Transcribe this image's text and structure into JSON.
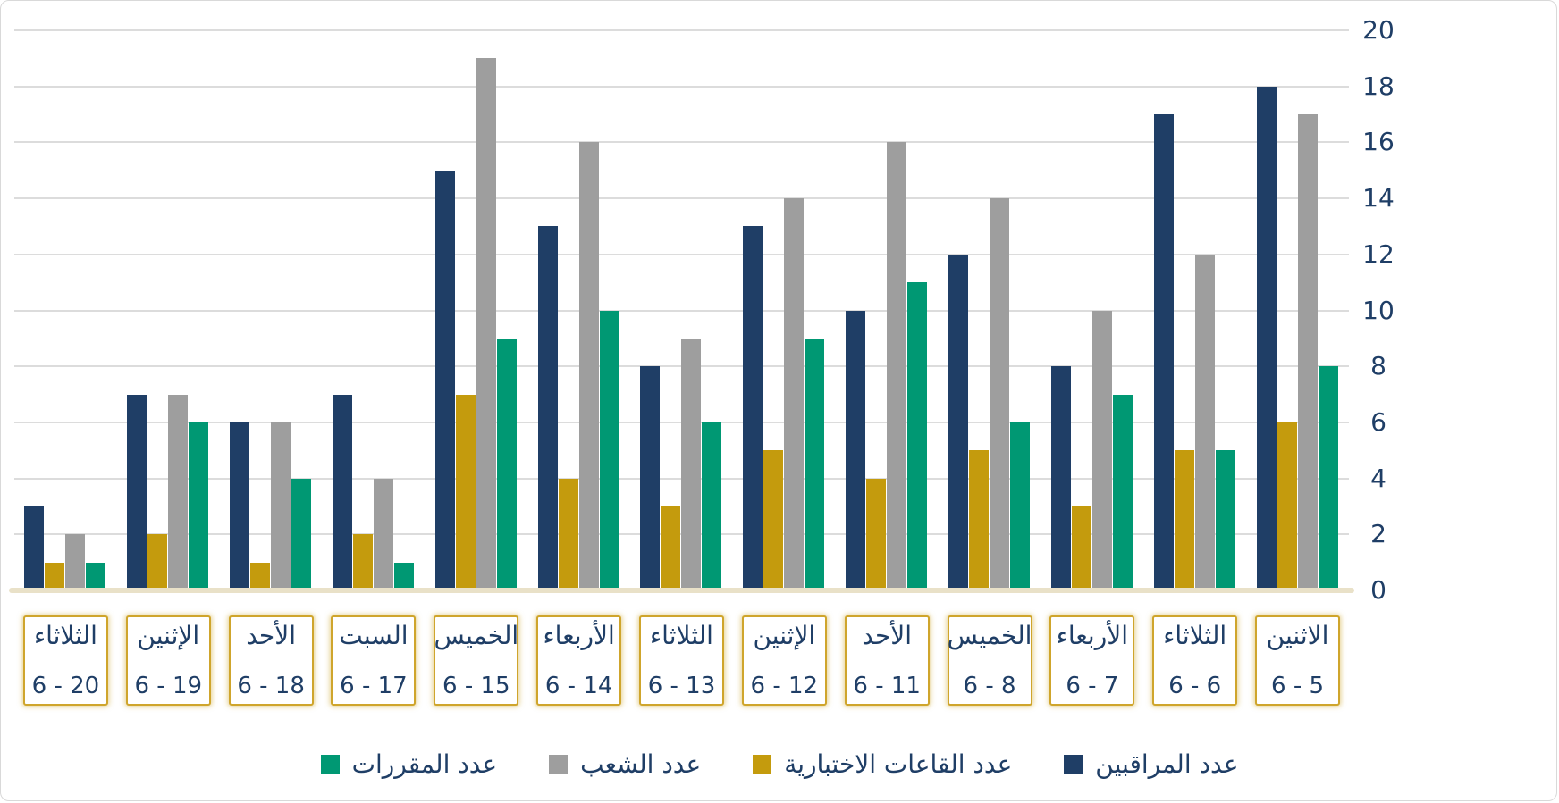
{
  "chart_data": {
    "type": "bar",
    "title": "",
    "direction": "rtl",
    "grid": true,
    "y_axis": {
      "side": "right",
      "min": 0,
      "max": 20,
      "tick_step": 2,
      "tick_labels": [
        "20",
        "18",
        "16",
        "14",
        "12",
        "10",
        "8",
        "6",
        "4",
        "2",
        "0"
      ]
    },
    "categories": [
      {
        "day": "الثلاثاء",
        "date": "6 - 20"
      },
      {
        "day": "الإثنين",
        "date": "6 - 19"
      },
      {
        "day": "الأحد",
        "date": "6 - 18"
      },
      {
        "day": "السبت",
        "date": "6 - 17"
      },
      {
        "day": "الخميس",
        "date": "6 - 15"
      },
      {
        "day": "الأربعاء",
        "date": "6 - 14"
      },
      {
        "day": "الثلاثاء",
        "date": "6 - 13"
      },
      {
        "day": "الإثنين",
        "date": "6 - 12"
      },
      {
        "day": "الأحد",
        "date": "6 - 11"
      },
      {
        "day": "الخميس",
        "date": "6 - 8"
      },
      {
        "day": "الأربعاء",
        "date": "6 - 7"
      },
      {
        "day": "الثلاثاء",
        "date": "6 - 6"
      },
      {
        "day": "الاثنين",
        "date": "6 - 5"
      }
    ],
    "series": [
      {
        "name": "عدد المراقبين",
        "color": "#1f3e66",
        "values": [
          3,
          7,
          6,
          7,
          15,
          13,
          8,
          13,
          10,
          12,
          8,
          17,
          18
        ]
      },
      {
        "name": "عدد القاعات الاختبارية",
        "color": "#c49b0d",
        "values": [
          1,
          2,
          1,
          2,
          7,
          4,
          3,
          5,
          4,
          5,
          3,
          5,
          6
        ]
      },
      {
        "name": "عدد الشعب",
        "color": "#9e9e9e",
        "values": [
          2,
          7,
          6,
          4,
          19,
          16,
          9,
          14,
          16,
          14,
          10,
          12,
          17
        ]
      },
      {
        "name": "عدد المقررات",
        "color": "#009873",
        "values": [
          1,
          6,
          4,
          1,
          9,
          10,
          6,
          9,
          11,
          6,
          7,
          5,
          8
        ]
      }
    ],
    "legend": {
      "position": "bottom",
      "order_left_to_right": [
        "عدد المقررات",
        "عدد الشعب",
        "عدد القاعات الاختبارية",
        "عدد المراقبين"
      ]
    }
  },
  "colors": {
    "text": "#1f3e66",
    "gridline": "#dcdcdc",
    "baseline": "#e9e1c8",
    "label_box_border": "#cfa52c",
    "frame_border": "#d9d9d9"
  }
}
